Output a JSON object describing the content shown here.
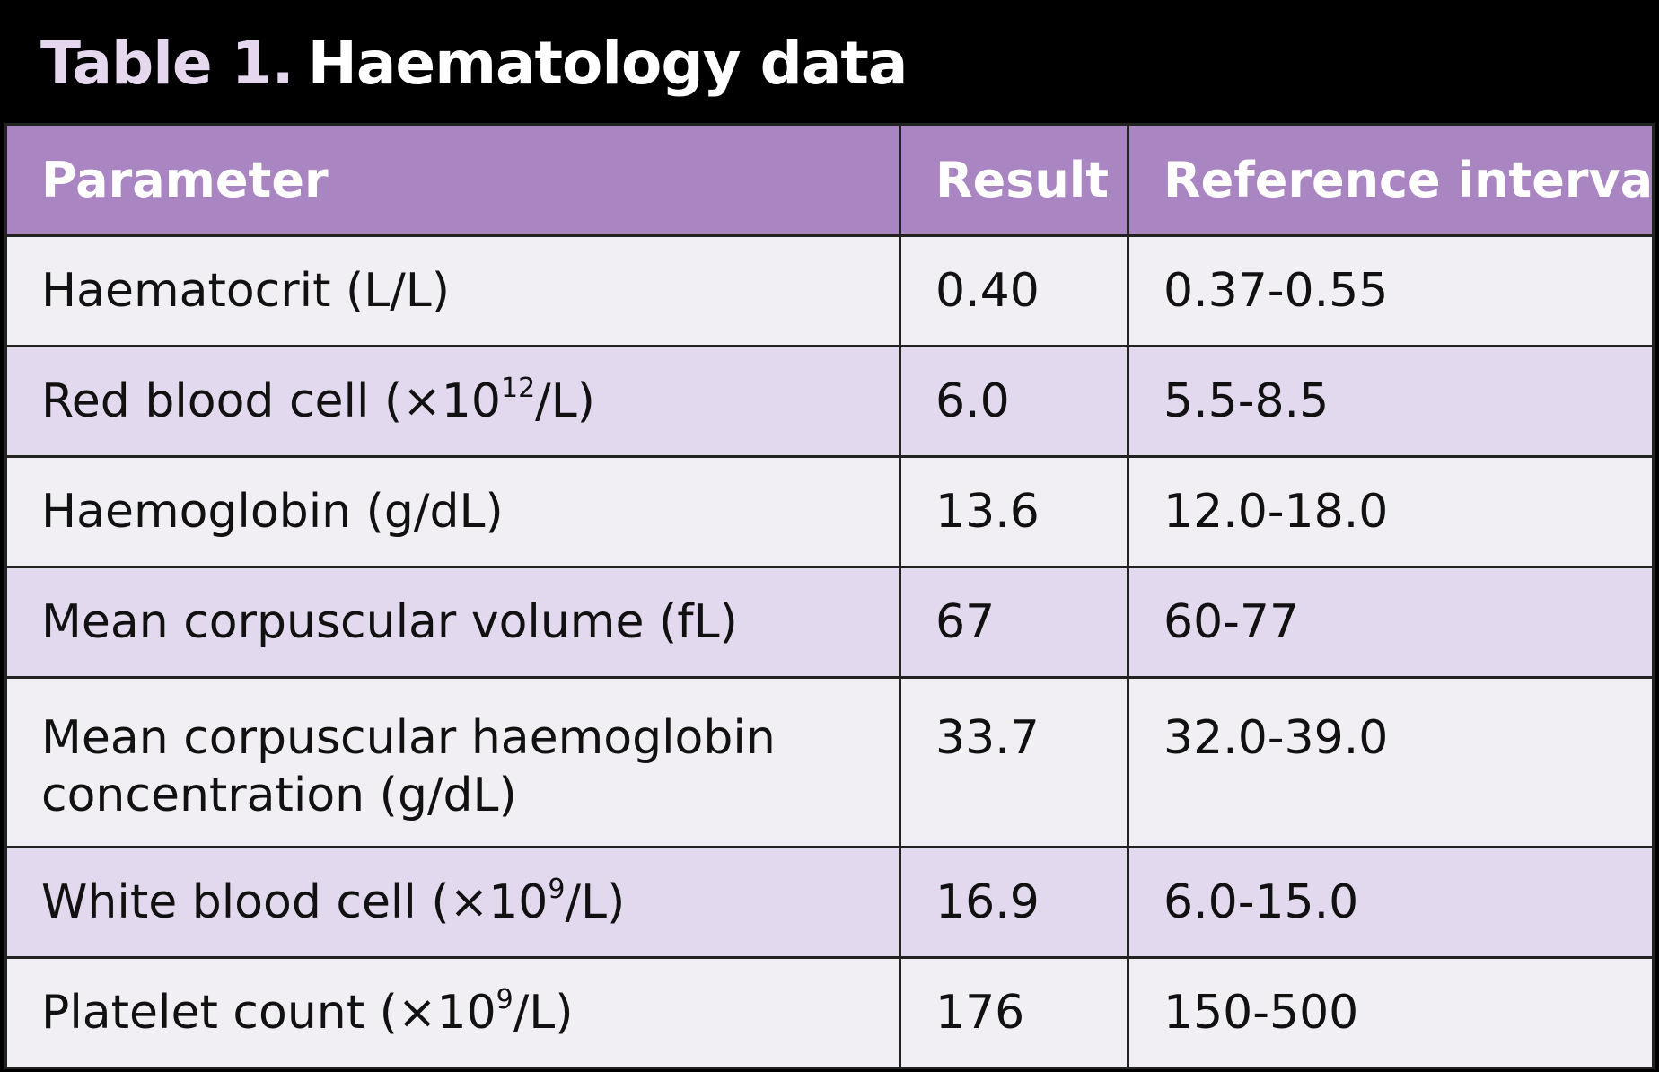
{
  "table": {
    "title_prefix": "Table 1.",
    "title_main": "Haematology data",
    "headers": [
      "Parameter",
      "Result",
      "Reference interval"
    ],
    "rows": [
      {
        "param": "Haematocrit (L/L)",
        "result": "0.40",
        "reference": "0.37-0.55"
      },
      {
        "param_before": "Red blood cell (×10",
        "param_sup": "12",
        "param_after": "/L)",
        "result": "6.0",
        "reference": "5.5-8.5"
      },
      {
        "param": "Haemoglobin (g/dL)",
        "result": "13.6",
        "reference": "12.0-18.0"
      },
      {
        "param": "Mean corpuscular volume (fL)",
        "result": "67",
        "reference": "60-77"
      },
      {
        "param": "Mean corpuscular haemoglobin concentration (g/dL)",
        "result": "33.7",
        "reference": "32.0-39.0"
      },
      {
        "param_before": "White blood cell (×10",
        "param_sup": "9",
        "param_after": "/L)",
        "result": "16.9",
        "reference": "6.0-15.0"
      },
      {
        "param_before": "Platelet count (×10",
        "param_sup": "9",
        "param_after": "/L)",
        "result": "176",
        "reference": "150-500"
      }
    ]
  },
  "colors": {
    "title_background": "#000000",
    "header_background": "#a985c1",
    "row_light": "#f1eff3",
    "row_tint": "#e3d9ee"
  }
}
